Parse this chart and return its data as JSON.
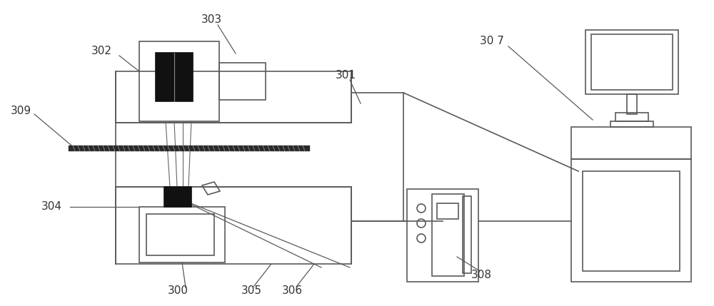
{
  "bg": "#ffffff",
  "lc": "#5a5a5a",
  "lc2": "#333333",
  "lw": 1.2,
  "lw_leader": 0.9,
  "fs": 11
}
